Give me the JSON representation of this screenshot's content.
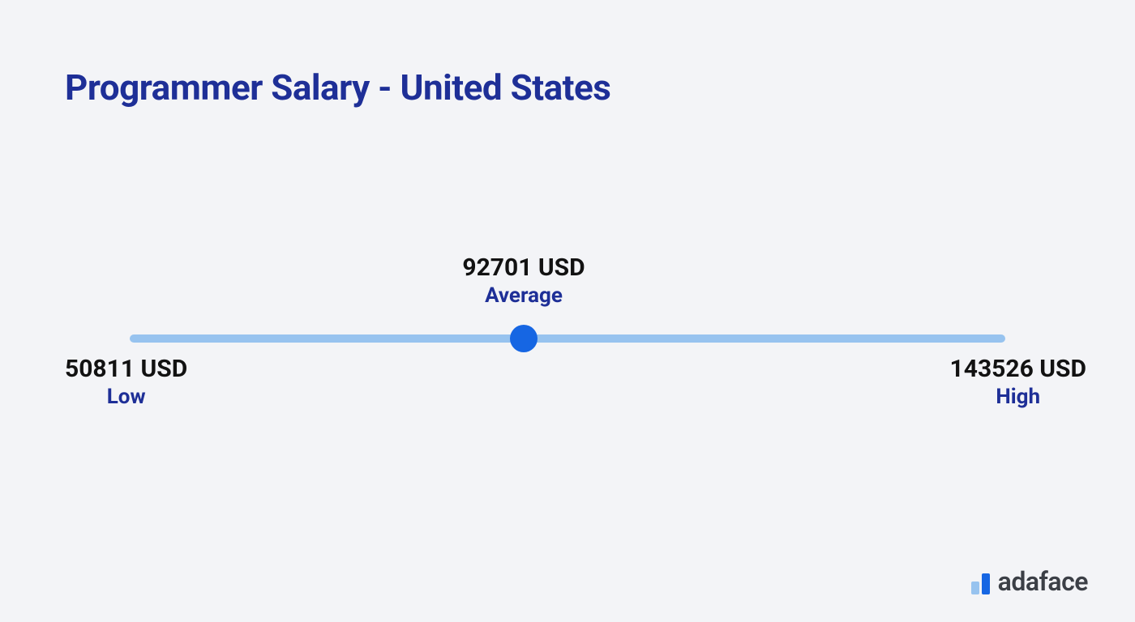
{
  "title": "Programmer Salary - United States",
  "chart": {
    "type": "range-slider",
    "low": {
      "value": 50811,
      "currency": "USD",
      "display": "50811 USD",
      "label": "Low"
    },
    "average": {
      "value": 92701,
      "currency": "USD",
      "display": "92701 USD",
      "label": "Average"
    },
    "high": {
      "value": 143526,
      "currency": "USD",
      "display": "143526 USD",
      "label": "High"
    },
    "track_color": "#97c3ef",
    "marker_color": "#1666e3",
    "marker_position_pct": 45,
    "value_color": "#121212",
    "label_color": "#1e2f97",
    "value_fontsize": 30,
    "label_fontsize": 26,
    "title_color": "#1e2f97",
    "title_fontsize": 44,
    "background_color": "#f3f4f7"
  },
  "brand": {
    "name": "adaface",
    "bar1_color": "#97c3ef",
    "bar2_color": "#1666e3",
    "text_color": "#3b3f46"
  }
}
